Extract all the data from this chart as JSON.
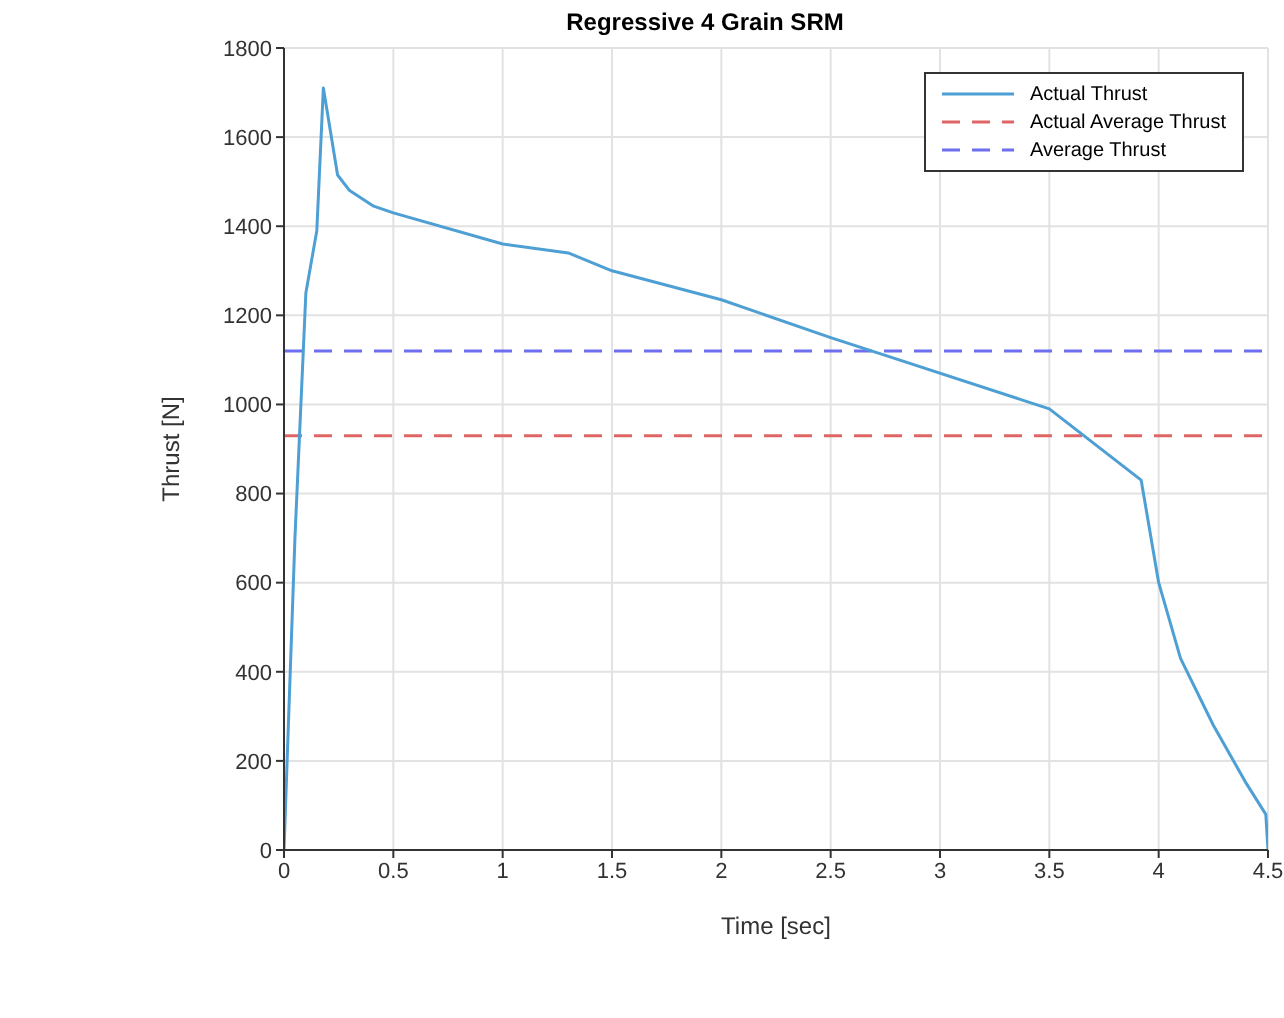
{
  "chart_data": {
    "type": "line",
    "title": "Regressive 4 Grain SRM",
    "xlabel": "Time [sec]",
    "ylabel": "Thrust [N]",
    "series": [
      {
        "name": "Actual Thrust",
        "color": "#4d9fd4",
        "x": [
          0,
          0.05,
          0.1,
          0.15,
          0.18,
          0.245,
          0.3,
          0.41,
          0.5,
          1.0,
          1.3,
          1.5,
          2.0,
          2.5,
          2.75,
          3.5,
          3.92,
          4.0,
          4.1,
          4.25,
          4.4,
          4.49,
          4.5
        ],
        "values": [
          0,
          700,
          1250,
          1390,
          1710,
          1515,
          1480,
          1445,
          1430,
          1360,
          1340,
          1300,
          1235,
          1150,
          1110,
          990,
          830,
          600,
          430,
          280,
          150,
          80,
          0
        ]
      }
    ],
    "ref_lines": [
      {
        "axis": "y",
        "value": 930,
        "label": "Actual Average Thrust",
        "color": "#e06666",
        "line_style": "dashed"
      },
      {
        "axis": "y",
        "value": 1120,
        "label": "Average Thrust",
        "color": "#6e6ef0",
        "line_style": "dashed"
      }
    ],
    "xlim": [
      0,
      4.5
    ],
    "xticks": [
      0,
      0.5,
      1,
      1.5,
      2,
      2.5,
      3,
      3.5,
      4,
      4.5
    ],
    "ylim": [
      0,
      1800
    ],
    "yticks": [
      0,
      200,
      400,
      600,
      800,
      1000,
      1200,
      1400,
      1600,
      1800
    ],
    "grid": true,
    "legend": "top right",
    "line_style": "solid",
    "marker": "none"
  }
}
